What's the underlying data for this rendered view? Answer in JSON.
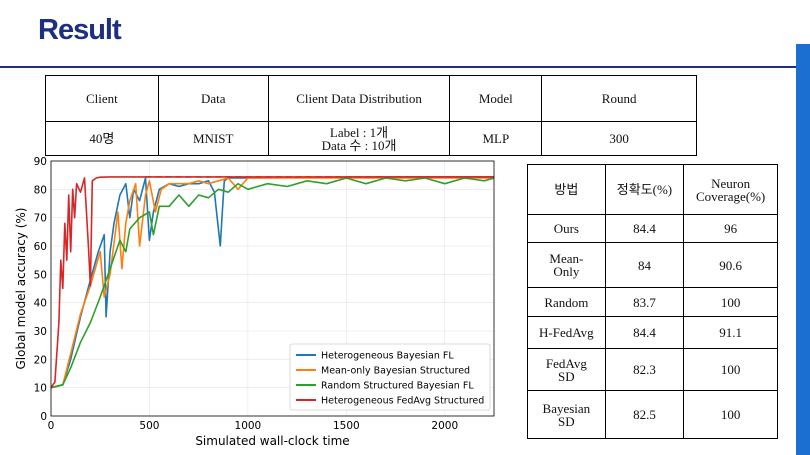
{
  "slide": {
    "title": "Result"
  },
  "top_table": {
    "headers": [
      "Client",
      "Data",
      "Client Data Distribution",
      "Model",
      "Round"
    ],
    "row": {
      "client": "40명",
      "data": "MNIST",
      "dist_line1": "Label : 1개",
      "dist_line2": "Data 수 : 10개",
      "model": "MLP",
      "round": "300"
    }
  },
  "side_table": {
    "headers": {
      "method": "방법",
      "accuracy": "정확도(%)",
      "coverage_line1": "Neuron",
      "coverage_line2": "Coverage(%)"
    },
    "rows": [
      {
        "m1": "Ours",
        "m2": "",
        "acc": "84.4",
        "cov": "96"
      },
      {
        "m1": "Mean-",
        "m2": "Only",
        "acc": "84",
        "cov": "90.6"
      },
      {
        "m1": "Random",
        "m2": "",
        "acc": "83.7",
        "cov": "100"
      },
      {
        "m1": "H-FedAvg",
        "m2": "",
        "acc": "84.4",
        "cov": "91.1"
      },
      {
        "m1": "FedAvg",
        "m2": "SD",
        "acc": "82.3",
        "cov": "100"
      },
      {
        "m1": "Bayesian",
        "m2": "SD",
        "acc": "82.5",
        "cov": "100"
      }
    ]
  },
  "chart_data": {
    "type": "line",
    "title": "",
    "xlabel": "Simulated wall-clock time",
    "ylabel": "Global model accuracy (%)",
    "xlim": [
      0,
      2250
    ],
    "ylim": [
      0,
      90
    ],
    "xticks": [
      0,
      500,
      1000,
      1500,
      2000
    ],
    "yticks": [
      0,
      10,
      20,
      30,
      40,
      50,
      60,
      70,
      80,
      90
    ],
    "grid": true,
    "legend_position": "lower-right",
    "series": [
      {
        "name": "Heterogeneous Bayesian FL",
        "color": "#1f77b4",
        "x": [
          0,
          60,
          100,
          150,
          200,
          240,
          270,
          280,
          300,
          320,
          350,
          380,
          400,
          420,
          450,
          480,
          500,
          520,
          550,
          600,
          650,
          700,
          750,
          800,
          830,
          850,
          860,
          870,
          880,
          900,
          950,
          1000,
          1500,
          2000,
          2250
        ],
        "y": [
          10,
          11,
          20,
          35,
          48,
          58,
          64,
          35,
          58,
          68,
          78,
          82,
          70,
          80,
          76,
          84,
          62,
          72,
          80,
          82,
          81,
          82,
          82,
          83,
          79,
          66,
          60,
          72,
          83,
          84,
          84,
          84,
          84.3,
          84.4,
          84.4
        ]
      },
      {
        "name": "Mean-only Bayesian Structured",
        "color": "#ff7f0e",
        "x": [
          0,
          60,
          100,
          150,
          200,
          250,
          270,
          300,
          340,
          360,
          380,
          400,
          430,
          450,
          480,
          500,
          530,
          560,
          600,
          650,
          700,
          750,
          800,
          850,
          900,
          950,
          1000,
          1500,
          2000,
          2250
        ],
        "y": [
          10,
          11,
          22,
          36,
          46,
          58,
          42,
          50,
          72,
          52,
          68,
          76,
          82,
          60,
          78,
          83,
          72,
          80,
          82,
          82,
          82,
          83,
          82,
          83,
          84,
          80,
          84,
          84,
          84,
          84
        ]
      },
      {
        "name": "Random Structured Bayesian FL",
        "color": "#2ca02c",
        "x": [
          0,
          60,
          100,
          150,
          200,
          250,
          300,
          350,
          380,
          400,
          450,
          500,
          520,
          550,
          600,
          650,
          700,
          750,
          800,
          850,
          900,
          950,
          1000,
          1100,
          1200,
          1300,
          1400,
          1500,
          1600,
          1700,
          1800,
          1900,
          2000,
          2100,
          2200,
          2250
        ],
        "y": [
          10,
          11,
          17,
          26,
          33,
          42,
          52,
          62,
          58,
          66,
          70,
          72,
          64,
          74,
          74,
          78,
          74,
          78,
          77,
          80,
          79,
          82,
          80,
          82,
          81,
          83,
          82,
          84,
          82,
          84,
          83,
          84,
          82,
          84,
          83,
          84
        ]
      },
      {
        "name": "Heterogeneous FedAvg Structured",
        "color": "#d62728",
        "x": [
          0,
          20,
          40,
          50,
          60,
          70,
          80,
          90,
          100,
          110,
          120,
          130,
          150,
          170,
          190,
          200,
          210,
          230,
          250,
          300,
          400,
          450,
          500,
          1000,
          1500,
          2000,
          2250
        ],
        "y": [
          10,
          12,
          33,
          55,
          45,
          68,
          55,
          78,
          58,
          80,
          70,
          82,
          79,
          84,
          60,
          46,
          83,
          84,
          84.3,
          84.4,
          84.4,
          84.4,
          84.4,
          84.4,
          84.4,
          84.4,
          84.4
        ]
      }
    ]
  }
}
